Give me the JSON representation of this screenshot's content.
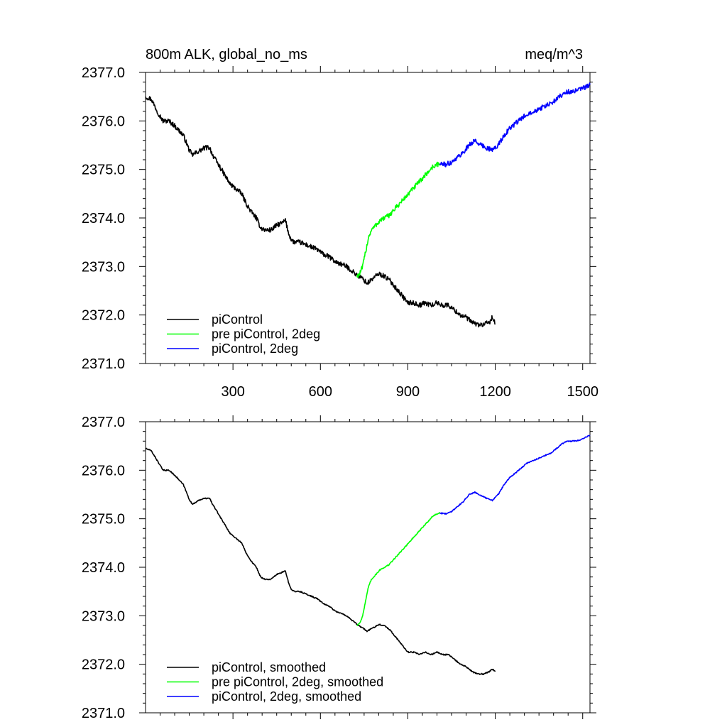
{
  "chart_data": [
    {
      "type": "line",
      "panel": "raw",
      "title_left": "800m ALK, global_no_ms",
      "title_right": "meq/m^3",
      "xlim": [
        0,
        1525
      ],
      "ylim": [
        2371.0,
        2377.0
      ],
      "x_ticks": [
        300,
        600,
        900,
        1200,
        1500
      ],
      "x_tick_labels": [
        "300",
        "600",
        "900",
        "1200",
        "1500"
      ],
      "y_ticks": [
        2371.0,
        2372.0,
        2373.0,
        2374.0,
        2375.0,
        2376.0,
        2377.0
      ],
      "y_tick_labels": [
        "2371.0",
        "2372.0",
        "2373.0",
        "2374.0",
        "2375.0",
        "2376.0",
        "2377.0"
      ],
      "legend_position": "bottom-left",
      "series": [
        {
          "name": "piControl",
          "color": "#000000",
          "noise": 0.05,
          "x": [
            0,
            20,
            40,
            60,
            80,
            100,
            130,
            150,
            160,
            175,
            190,
            205,
            220,
            230,
            240,
            255,
            270,
            290,
            310,
            330,
            345,
            360,
            380,
            395,
            410,
            430,
            450,
            470,
            480,
            490,
            500,
            510,
            530,
            550,
            570,
            590,
            610,
            630,
            650,
            670,
            690,
            710,
            720,
            730,
            745,
            760,
            780,
            800,
            820,
            840,
            860,
            880,
            900,
            920,
            940,
            960,
            980,
            1000,
            1020,
            1040,
            1060,
            1080,
            1100,
            1120,
            1140,
            1160,
            1180,
            1190,
            1200
          ],
          "values": [
            2376.5,
            2376.45,
            2376.2,
            2376.0,
            2376.0,
            2375.9,
            2375.7,
            2375.4,
            2375.3,
            2375.35,
            2375.4,
            2375.45,
            2375.45,
            2375.3,
            2375.2,
            2375.05,
            2374.9,
            2374.7,
            2374.6,
            2374.5,
            2374.3,
            2374.15,
            2374.0,
            2373.8,
            2373.75,
            2373.75,
            2373.85,
            2373.9,
            2373.95,
            2373.7,
            2373.55,
            2373.5,
            2373.5,
            2373.45,
            2373.4,
            2373.35,
            2373.25,
            2373.2,
            2373.1,
            2373.05,
            2373.0,
            2372.9,
            2372.85,
            2372.8,
            2372.75,
            2372.65,
            2372.75,
            2372.85,
            2372.8,
            2372.7,
            2372.55,
            2372.4,
            2372.25,
            2372.25,
            2372.2,
            2372.25,
            2372.2,
            2372.25,
            2372.2,
            2372.2,
            2372.1,
            2372.0,
            2371.95,
            2371.85,
            2371.8,
            2371.8,
            2371.85,
            2371.95,
            2371.82
          ]
        },
        {
          "name": "pre piControl, 2deg",
          "color": "#00ff00",
          "noise": 0.05,
          "x": [
            725,
            735,
            745,
            755,
            765,
            775,
            790,
            805,
            820,
            835,
            850,
            865,
            880,
            895,
            910,
            925,
            940,
            955,
            970,
            985,
            1000,
            1010
          ],
          "values": [
            2372.8,
            2372.85,
            2373.0,
            2373.3,
            2373.6,
            2373.75,
            2373.85,
            2373.95,
            2374.0,
            2374.05,
            2374.15,
            2374.25,
            2374.35,
            2374.45,
            2374.55,
            2374.65,
            2374.75,
            2374.85,
            2374.95,
            2375.05,
            2375.1,
            2375.12
          ]
        },
        {
          "name": "piControl, 2deg",
          "color": "#0000ff",
          "noise": 0.05,
          "x": [
            1010,
            1030,
            1050,
            1070,
            1090,
            1110,
            1130,
            1150,
            1170,
            1190,
            1210,
            1230,
            1250,
            1270,
            1290,
            1310,
            1330,
            1350,
            1370,
            1390,
            1410,
            1430,
            1450,
            1470,
            1490,
            1510,
            1525
          ],
          "values": [
            2375.12,
            2375.1,
            2375.15,
            2375.25,
            2375.35,
            2375.5,
            2375.6,
            2375.5,
            2375.45,
            2375.4,
            2375.5,
            2375.7,
            2375.85,
            2375.95,
            2376.05,
            2376.15,
            2376.2,
            2376.25,
            2376.3,
            2376.35,
            2376.45,
            2376.55,
            2376.6,
            2376.6,
            2376.65,
            2376.7,
            2376.75
          ]
        }
      ]
    },
    {
      "type": "line",
      "panel": "smoothed",
      "xlim": [
        0,
        1525
      ],
      "ylim": [
        2371.0,
        2377.0
      ],
      "x_ticks": [
        300,
        600,
        900,
        1200,
        1500
      ],
      "y_ticks": [
        2371.0,
        2372.0,
        2373.0,
        2374.0,
        2375.0,
        2376.0,
        2377.0
      ],
      "y_tick_labels": [
        "2371.0",
        "2372.0",
        "2373.0",
        "2374.0",
        "2375.0",
        "2376.0",
        "2377.0"
      ],
      "legend_position": "bottom-left",
      "series": [
        {
          "name": "piControl, smoothed",
          "color": "#000000",
          "noise": 0.012,
          "x": [
            0,
            20,
            40,
            60,
            80,
            100,
            130,
            150,
            160,
            175,
            190,
            205,
            220,
            230,
            240,
            255,
            270,
            290,
            310,
            330,
            345,
            360,
            380,
            395,
            410,
            430,
            450,
            470,
            480,
            490,
            500,
            510,
            530,
            550,
            570,
            590,
            610,
            630,
            650,
            670,
            690,
            710,
            720,
            730,
            745,
            760,
            780,
            800,
            820,
            840,
            860,
            880,
            900,
            920,
            940,
            960,
            980,
            1000,
            1020,
            1040,
            1060,
            1080,
            1100,
            1120,
            1140,
            1160,
            1180,
            1190,
            1200
          ],
          "values": [
            2376.45,
            2376.4,
            2376.2,
            2376.0,
            2376.0,
            2375.9,
            2375.7,
            2375.4,
            2375.3,
            2375.35,
            2375.4,
            2375.42,
            2375.42,
            2375.3,
            2375.2,
            2375.05,
            2374.9,
            2374.7,
            2374.6,
            2374.5,
            2374.3,
            2374.15,
            2374.0,
            2373.8,
            2373.75,
            2373.75,
            2373.85,
            2373.9,
            2373.92,
            2373.7,
            2373.55,
            2373.5,
            2373.5,
            2373.45,
            2373.4,
            2373.35,
            2373.25,
            2373.2,
            2373.1,
            2373.05,
            2373.0,
            2372.9,
            2372.85,
            2372.8,
            2372.75,
            2372.68,
            2372.75,
            2372.82,
            2372.8,
            2372.7,
            2372.55,
            2372.4,
            2372.25,
            2372.25,
            2372.2,
            2372.25,
            2372.2,
            2372.25,
            2372.2,
            2372.2,
            2372.1,
            2372.0,
            2371.95,
            2371.85,
            2371.8,
            2371.8,
            2371.85,
            2371.9,
            2371.85
          ]
        },
        {
          "name": "pre piControl, 2deg, smoothed",
          "color": "#00ff00",
          "noise": 0.012,
          "x": [
            725,
            735,
            745,
            755,
            765,
            775,
            790,
            805,
            820,
            835,
            850,
            865,
            880,
            895,
            910,
            925,
            940,
            955,
            970,
            985,
            1000,
            1010
          ],
          "values": [
            2372.8,
            2372.85,
            2373.0,
            2373.3,
            2373.6,
            2373.75,
            2373.85,
            2373.95,
            2374.0,
            2374.05,
            2374.15,
            2374.25,
            2374.35,
            2374.45,
            2374.55,
            2374.65,
            2374.75,
            2374.85,
            2374.95,
            2375.05,
            2375.1,
            2375.12
          ]
        },
        {
          "name": "piControl, 2deg, smoothed",
          "color": "#0000ff",
          "noise": 0.012,
          "x": [
            1010,
            1030,
            1050,
            1070,
            1090,
            1110,
            1130,
            1150,
            1170,
            1190,
            1210,
            1230,
            1250,
            1270,
            1290,
            1310,
            1330,
            1350,
            1370,
            1390,
            1410,
            1430,
            1450,
            1470,
            1490,
            1510,
            1525
          ],
          "values": [
            2375.12,
            2375.1,
            2375.15,
            2375.25,
            2375.35,
            2375.5,
            2375.55,
            2375.48,
            2375.42,
            2375.38,
            2375.5,
            2375.7,
            2375.85,
            2375.95,
            2376.05,
            2376.15,
            2376.2,
            2376.25,
            2376.3,
            2376.35,
            2376.45,
            2376.55,
            2376.6,
            2376.6,
            2376.62,
            2376.68,
            2376.72
          ]
        }
      ]
    }
  ]
}
